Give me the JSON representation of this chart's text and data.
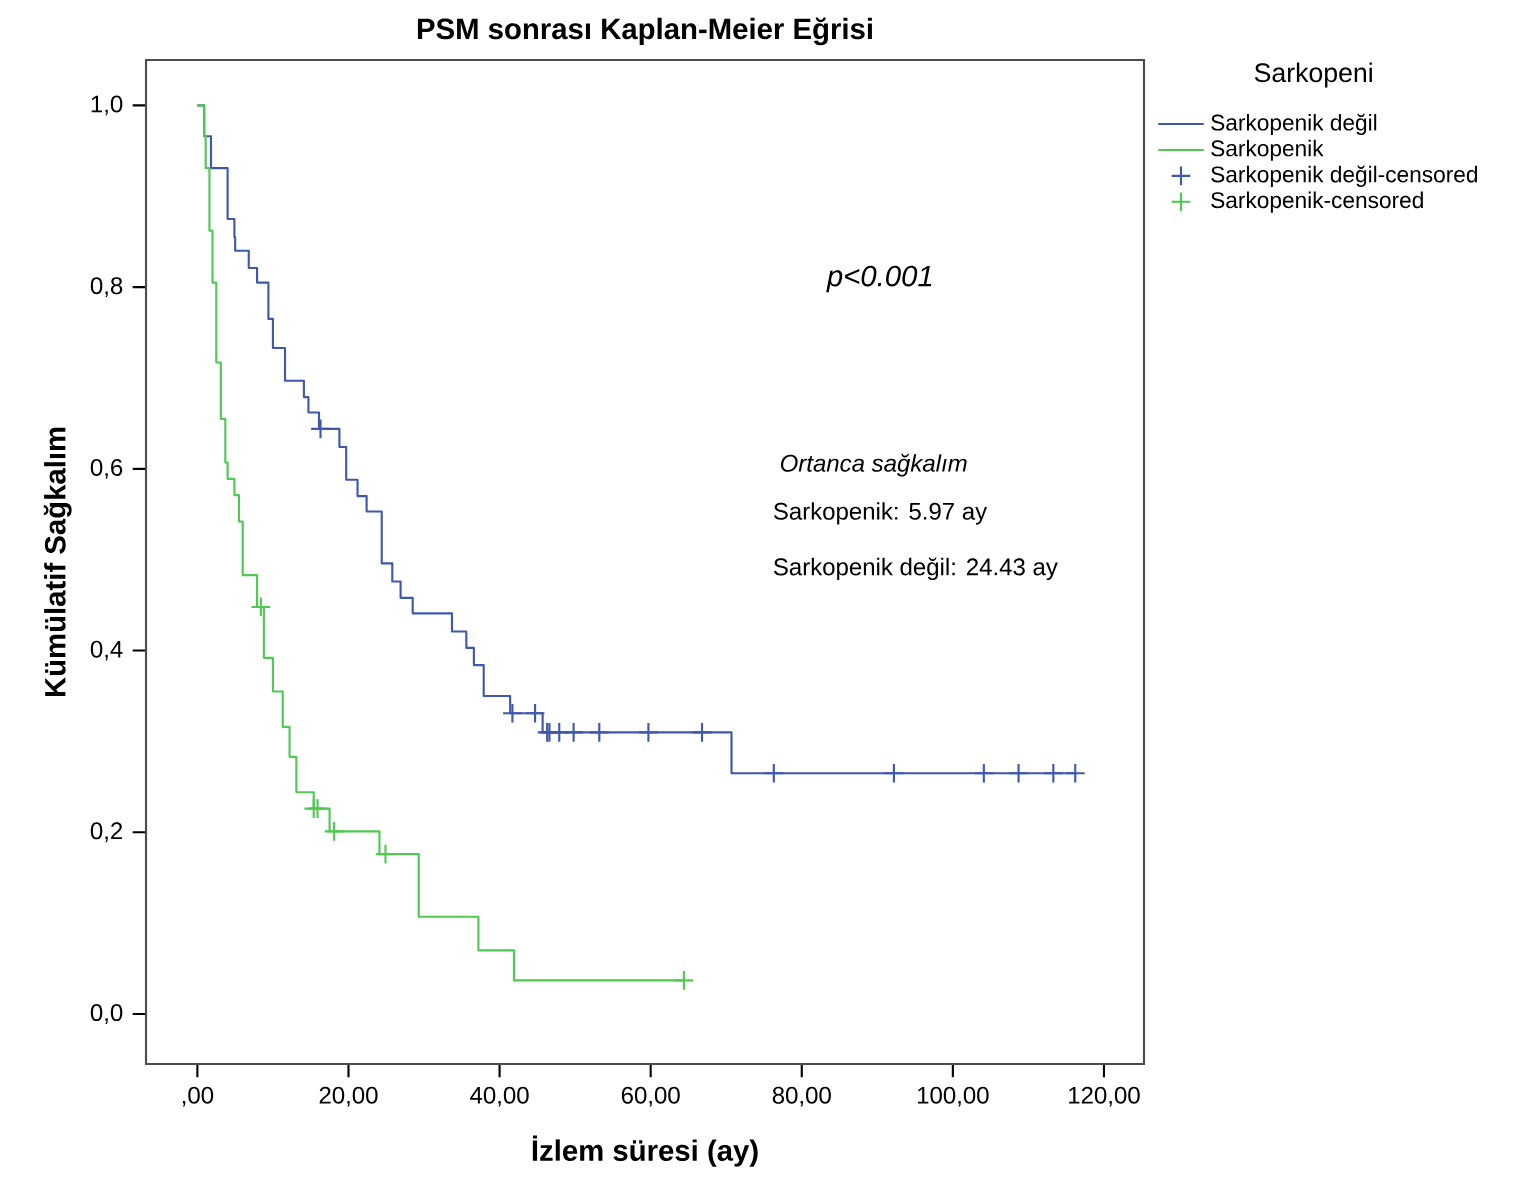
{
  "chart_data": {
    "type": "step",
    "title": "PSM sonrası Kaplan-Meier Eğrisi",
    "xlabel": "İzlem süresi (ay)",
    "ylabel": "Kümülatif Sağkalım",
    "legend_title": "Sarkopeni",
    "legend": "top right",
    "xlim": [
      -6.8,
      125.3
    ],
    "ylim": [
      -0.055,
      1.05
    ],
    "xticks": [
      {
        "value": 0,
        "label": ",00"
      },
      {
        "value": 20,
        "label": "20,00"
      },
      {
        "value": 40,
        "label": "40,00"
      },
      {
        "value": 60,
        "label": "60,00"
      },
      {
        "value": 80,
        "label": "80,00"
      },
      {
        "value": 100,
        "label": "100,00"
      },
      {
        "value": 120,
        "label": "120,00"
      }
    ],
    "yticks": [
      {
        "value": 0,
        "label": "0,0"
      },
      {
        "value": 0.2,
        "label": "0,2"
      },
      {
        "value": 0.4,
        "label": "0,4"
      },
      {
        "value": 0.6,
        "label": "0,6"
      },
      {
        "value": 0.8,
        "label": "0,8"
      },
      {
        "value": 1.0,
        "label": "1,0"
      }
    ],
    "annotations": [
      "p<0.001",
      "Ortanca sağkalım",
      "Sarkopenik: 5.97 ay",
      "Sarkopenik değil: 24.43 ay"
    ],
    "series": [
      {
        "name": "Sarkopenik değil",
        "color": "#3e58ac",
        "x": [
          0,
          0.9,
          1.8,
          4.0,
          4.9,
          5.0,
          6.8,
          7.9,
          9.4,
          10.0,
          11.6,
          14.1,
          14.7,
          16.1,
          18.8,
          19.7,
          21.2,
          22.4,
          24.4,
          25.8,
          26.9,
          28.5,
          33.7,
          35.6,
          36.6,
          37.9,
          41.4,
          45.7,
          70.7,
          116.2
        ],
        "values": [
          1.0,
          0.966,
          0.931,
          0.875,
          0.855,
          0.84,
          0.821,
          0.805,
          0.765,
          0.733,
          0.697,
          0.679,
          0.662,
          0.644,
          0.624,
          0.588,
          0.57,
          0.553,
          0.496,
          0.476,
          0.458,
          0.441,
          0.421,
          0.403,
          0.384,
          0.35,
          0.331,
          0.31,
          0.265,
          0.265
        ]
      },
      {
        "name": "Sarkopenik",
        "color": "#4fc94f",
        "x": [
          0,
          0.9,
          1.1,
          1.6,
          2.0,
          2.5,
          3.1,
          3.7,
          4.0,
          4.9,
          5.5,
          6.0,
          7.9,
          8.8,
          10.0,
          11.3,
          12.2,
          13.1,
          15.4,
          17.5,
          24.1,
          29.3,
          37.2,
          41.9,
          64.4
        ],
        "values": [
          1.0,
          0.966,
          0.931,
          0.862,
          0.805,
          0.717,
          0.655,
          0.607,
          0.589,
          0.571,
          0.542,
          0.483,
          0.448,
          0.392,
          0.355,
          0.316,
          0.283,
          0.244,
          0.226,
          0.201,
          0.176,
          0.107,
          0.07,
          0.037,
          0.037
        ]
      },
      {
        "name": "Sarkopenik değil-censored",
        "type": "scatter",
        "marker": "cross",
        "color": "#3e58ac",
        "x": [
          16.3,
          41.7,
          44.7,
          46.3,
          46.6,
          47.9,
          49.8,
          53.2,
          59.7,
          66.8,
          76.3,
          92.2,
          104.1,
          108.7,
          113.3,
          116.2
        ],
        "values": [
          0.644,
          0.331,
          0.331,
          0.31,
          0.31,
          0.31,
          0.31,
          0.31,
          0.31,
          0.31,
          0.265,
          0.265,
          0.265,
          0.265,
          0.265,
          0.265
        ]
      },
      {
        "name": "Sarkopenik-censored",
        "type": "scatter",
        "marker": "cross",
        "color": "#4fc94f",
        "x": [
          8.4,
          15.4,
          15.9,
          18.1,
          24.9,
          64.4
        ],
        "values": [
          0.448,
          0.226,
          0.226,
          0.201,
          0.176,
          0.037
        ]
      }
    ]
  }
}
